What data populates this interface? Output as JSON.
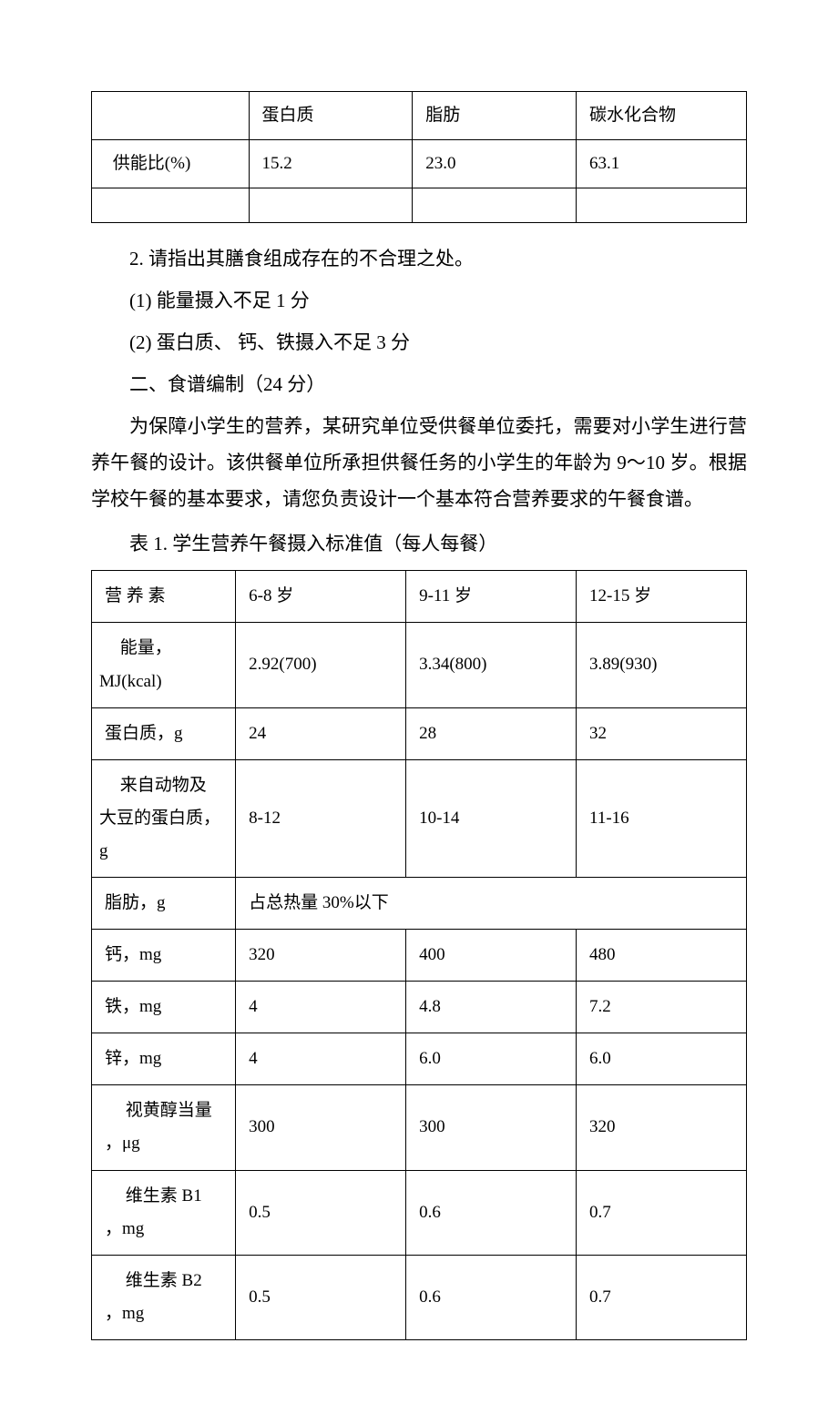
{
  "table1": {
    "header": [
      "",
      "蛋白质",
      "脂肪",
      "碳水化合物"
    ],
    "rowLabel": "供能比(%)",
    "values": [
      "15.2",
      "23.0",
      "63.1"
    ]
  },
  "paragraphs": {
    "q2": "2. 请指出其膳食组成存在的不合理之处。",
    "a1": "(1) 能量摄入不足 1 分",
    "a2": "(2) 蛋白质、 钙、铁摄入不足 3 分",
    "section": "二、食谱编制（24 分）",
    "desc": "为保障小学生的营养，某研究单位受供餐单位委托，需要对小学生进行营养午餐的设计。该供餐单位所承担供餐任务的小学生的年龄为 9～10 岁。根据学校午餐的基本要求，请您负责设计一个基本符合营养要求的午餐食谱。",
    "tableTitle": "表 1. 学生营养午餐摄入标准值（每人每餐）"
  },
  "table2": {
    "header": [
      "营 养 素",
      "6-8 岁",
      "9-11 岁",
      "12-15 岁"
    ],
    "rows": [
      {
        "label": "能量，MJ(kcal)",
        "v": [
          "2.92(700)",
          "3.34(800)",
          "3.89(930)"
        ],
        "indent": false
      },
      {
        "label": "蛋白质，g",
        "v": [
          "24",
          "28",
          "32"
        ],
        "indent": true
      },
      {
        "label": "来自动物及大豆的蛋白质，g",
        "v": [
          "8-12",
          "10-14",
          "11-16"
        ],
        "indent": false
      },
      {
        "label": "脂肪，g",
        "merged": "占总热量 30%以下",
        "indent": true
      },
      {
        "label": "钙，mg",
        "v": [
          "320",
          "400",
          "480"
        ],
        "indent": true
      },
      {
        "label": "铁，mg",
        "v": [
          "4",
          "4.8",
          "7.2"
        ],
        "indent": true
      },
      {
        "label": "锌，mg",
        "v": [
          "4",
          "6.0",
          "6.0"
        ],
        "indent": true
      },
      {
        "label": "视黄醇当量，μg",
        "v": [
          "300",
          "300",
          "320"
        ],
        "indent": false,
        "wrap": true
      },
      {
        "label": "维生素 B1，mg",
        "v": [
          "0.5",
          "0.6",
          "0.7"
        ],
        "indent": false,
        "wrap": true
      },
      {
        "label": "维生素 B2，mg",
        "v": [
          "0.5",
          "0.6",
          "0.7"
        ],
        "indent": false,
        "wrap": true
      }
    ]
  },
  "colors": {
    "text": "#000000",
    "border": "#000000",
    "background": "#ffffff"
  },
  "font": {
    "body_family": "SimSun",
    "body_size": 21,
    "table_size": 19
  }
}
